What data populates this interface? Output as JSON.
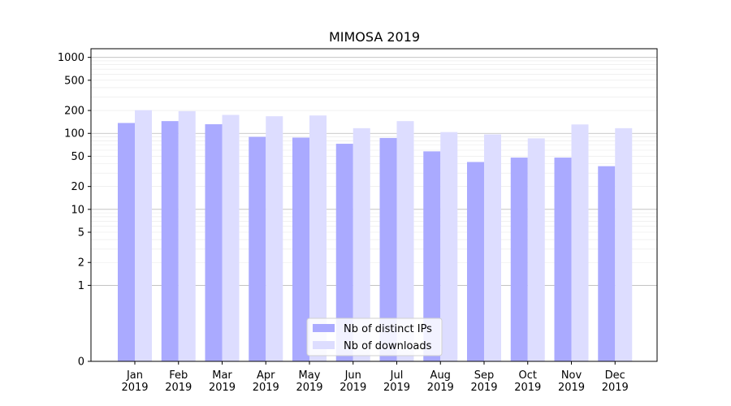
{
  "chart_data": {
    "type": "bar",
    "title": "MIMOSA 2019",
    "xlabel": "",
    "ylabel": "",
    "categories": [
      [
        "Jan",
        "2019"
      ],
      [
        "Feb",
        "2019"
      ],
      [
        "Mar",
        "2019"
      ],
      [
        "Apr",
        "2019"
      ],
      [
        "May",
        "2019"
      ],
      [
        "Jun",
        "2019"
      ],
      [
        "Jul",
        "2019"
      ],
      [
        "Aug",
        "2019"
      ],
      [
        "Sep",
        "2019"
      ],
      [
        "Oct",
        "2019"
      ],
      [
        "Nov",
        "2019"
      ],
      [
        "Dec",
        "2019"
      ]
    ],
    "series": [
      {
        "name": "Nb of distinct IPs",
        "color": "#aaaaff",
        "values": [
          137,
          145,
          132,
          90,
          88,
          73,
          87,
          58,
          42,
          48,
          48,
          37
        ]
      },
      {
        "name": "Nb of downloads",
        "color": "#ddddff",
        "values": [
          202,
          196,
          175,
          168,
          172,
          117,
          145,
          104,
          97,
          86,
          131,
          117
        ]
      }
    ],
    "yscale": "symlog",
    "ylim": [
      0,
      1300
    ],
    "yticks": [
      0,
      1,
      2,
      5,
      10,
      20,
      50,
      100,
      200,
      500,
      1000
    ],
    "grid": true,
    "legend": "lower-center"
  }
}
